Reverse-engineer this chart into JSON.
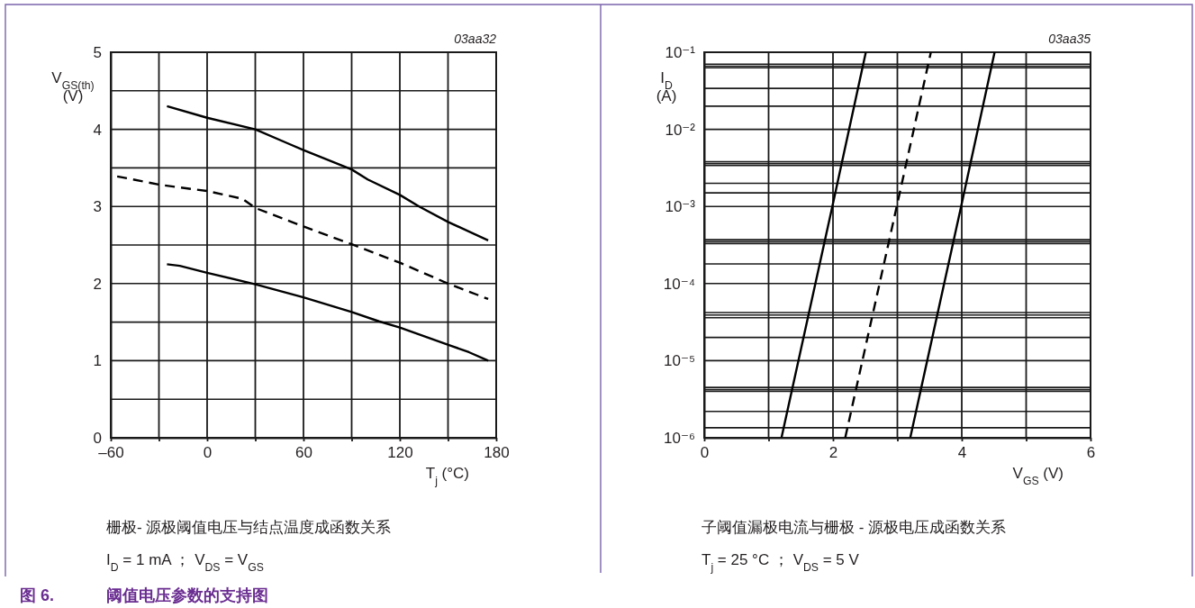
{
  "chart_data": [
    {
      "type": "line",
      "xlabel": "T$_{j}$ (°C)",
      "ylabel": "V$_{GS(th)}$\n(V)",
      "annotations": [
        "03aa32",
        "栅极- 源极阈值电压与结点温度成函数关系",
        "I$_{D}$ = 1 mA ； V$_{DS}$ = V$_{GS}$",
        "图 6.",
        "阈值电压参数的支持图"
      ],
      "xlim": [
        -60,
        180
      ],
      "xticks": [
        {
          "value": -60,
          "label": "–60"
        },
        {
          "value": -30,
          "label": null
        },
        0,
        {
          "value": 30,
          "label": null
        },
        60,
        {
          "value": 90,
          "label": null
        },
        120,
        {
          "value": 150,
          "label": null
        },
        180
      ],
      "ylim": [
        0,
        5
      ],
      "yticks": [
        0,
        {
          "value": 0.5,
          "label": null
        },
        1,
        {
          "value": 1.5,
          "label": null
        },
        2,
        {
          "value": 2.5,
          "label": null
        },
        3,
        {
          "value": 3.5,
          "label": null
        },
        4,
        {
          "value": 4.5,
          "label": null
        },
        5
      ],
      "grid": true,
      "series": [
        {
          "color": "#000000",
          "line_style": "solid",
          "x": [
            -25,
            0,
            30,
            50,
            60,
            90,
            100,
            120,
            132,
            150,
            175
          ],
          "values": [
            4.3,
            4.15,
            4.0,
            3.82,
            3.73,
            3.48,
            3.35,
            3.15,
            3.0,
            2.8,
            2.56
          ]
        },
        {
          "color": "#000000",
          "line_style": "dashed",
          "x": [
            -56,
            -29,
            0,
            22,
            30,
            60,
            90,
            120,
            150,
            175
          ],
          "values": [
            3.39,
            3.28,
            3.2,
            3.1,
            2.98,
            2.74,
            2.51,
            2.27,
            2.0,
            1.8
          ]
        },
        {
          "color": "#000000",
          "line_style": "solid",
          "x": [
            -25,
            -17,
            0,
            30,
            60,
            90,
            107,
            120,
            140,
            151,
            163,
            175
          ],
          "values": [
            2.25,
            2.23,
            2.14,
            1.99,
            1.82,
            1.63,
            1.51,
            1.43,
            1.28,
            1.2,
            1.11,
            1.0
          ]
        }
      ]
    },
    {
      "type": "line",
      "xlabel": "V$_{GS}$ (V)",
      "ylabel": "I$_{D}$\n(A)",
      "annotations": [
        "03aa35",
        "子阈值漏极电流与栅极 - 源极电压成函数关系",
        "T$_{j}$ = 25 °C ；  V$_{DS}$ = 5 V"
      ],
      "xlim": [
        0,
        6
      ],
      "xticks": [
        0,
        {
          "value": 1,
          "label": null
        },
        2,
        {
          "value": 3,
          "label": null
        },
        4,
        {
          "value": 5,
          "label": null
        },
        6
      ],
      "log": "y",
      "ylim": [
        1e-06,
        0.1
      ],
      "yticks": [
        {
          "value": 1e-06,
          "label": "10⁻⁶"
        },
        {
          "value": 1.35e-06,
          "label": null
        },
        {
          "value": 2.2e-06,
          "label": null
        },
        {
          "value": 4e-06,
          "label": null
        },
        {
          "value": 4.2e-06,
          "label": null
        },
        {
          "value": 4.5e-06,
          "label": null
        },
        {
          "value": 1e-05,
          "label": "10⁻⁵"
        },
        {
          "value": 2e-05,
          "label": null
        },
        {
          "value": 3.6e-05,
          "label": null
        },
        {
          "value": 3.9e-05,
          "label": null
        },
        {
          "value": 4.2e-05,
          "label": null
        },
        {
          "value": 0.0001,
          "label": "10⁻⁴"
        },
        {
          "value": 0.00018,
          "label": null
        },
        {
          "value": 0.00033,
          "label": null
        },
        {
          "value": 0.00035,
          "label": null
        },
        {
          "value": 0.00037,
          "label": null
        },
        {
          "value": 0.001,
          "label": "10⁻³"
        },
        {
          "value": 0.0015,
          "label": null
        },
        {
          "value": 0.002,
          "label": null
        },
        {
          "value": 0.0034,
          "label": null
        },
        {
          "value": 0.0036,
          "label": null
        },
        {
          "value": 0.0038,
          "label": null
        },
        {
          "value": 0.01,
          "label": "10⁻²"
        },
        {
          "value": 0.02,
          "label": null
        },
        {
          "value": 0.034,
          "label": null
        },
        {
          "value": 0.063,
          "label": null
        },
        {
          "value": 0.066,
          "label": null
        },
        {
          "value": 0.07,
          "label": null
        },
        {
          "value": 0.1,
          "label": "10⁻¹"
        }
      ],
      "grid": true,
      "series": [
        {
          "color": "#000000",
          "line_style": "solid",
          "x": [
            1.2,
            1.99,
            2.51
          ],
          "values": [
            1e-06,
            0.001,
            0.1
          ]
        },
        {
          "color": "#000000",
          "line_style": "dashed",
          "x": [
            2.19,
            2.99,
            3.52
          ],
          "values": [
            1e-06,
            0.001,
            0.1
          ]
        },
        {
          "color": "#000000",
          "line_style": "solid",
          "x": [
            3.2,
            3.99,
            4.51
          ],
          "values": [
            1e-06,
            0.001,
            0.1
          ]
        }
      ]
    }
  ]
}
